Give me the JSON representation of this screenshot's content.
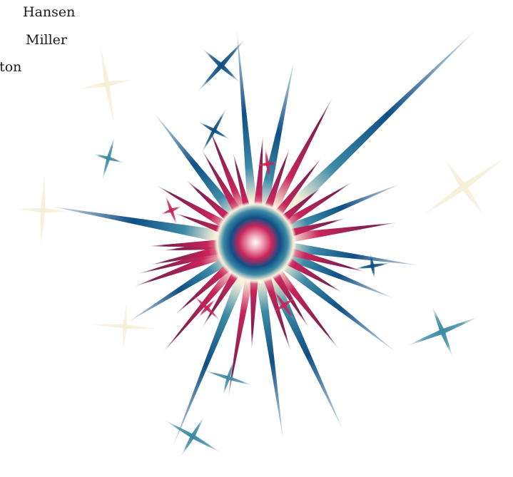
{
  "author_names": [
    "Hansen",
    "Miller",
    "rton"
  ],
  "colors": {
    "crimson": "#c8245a",
    "navy": "#0e4f85",
    "teal": "#3d8aa6",
    "cream": "#f6efd8",
    "white": "#ffffff"
  },
  "illustration": {
    "name": "starburst",
    "icon": "starburst-icon",
    "sparkle_icon": "sparkle-star-icon"
  }
}
